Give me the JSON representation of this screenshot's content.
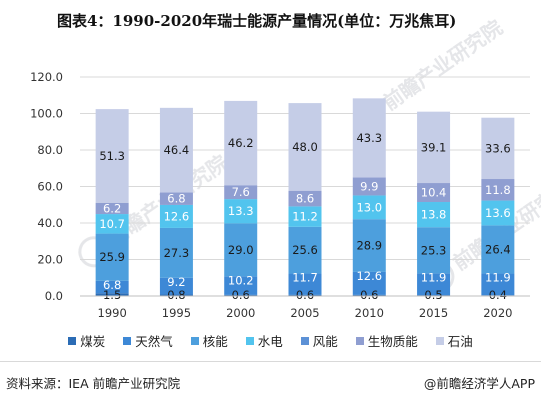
{
  "title": "图表4：1990-2020年瑞士能源产量情况(单位：万兆焦耳)",
  "source": "资料来源：IEA 前瞻产业研究院",
  "brand": "@前瞻经济学人APP",
  "watermarks": [
    "前瞻产业研究院",
    "前瞻产业研究院",
    "前瞻产业研究院"
  ],
  "chart_data": {
    "type": "bar",
    "stacked": true,
    "categories": [
      "1990",
      "1995",
      "2000",
      "2005",
      "2010",
      "2015",
      "2020"
    ],
    "ylim": [
      0,
      120
    ],
    "yticks": [
      "0.0",
      "20.0",
      "40.0",
      "60.0",
      "80.0",
      "100.0",
      "120.0"
    ],
    "series": [
      {
        "name": "煤炭",
        "color": "#2b6cb5",
        "values": [
          1.5,
          0.8,
          0.6,
          0.6,
          0.6,
          0.5,
          0.4
        ],
        "labels": [
          "1.5",
          "0.8",
          "0.6",
          "0.6",
          "0.6",
          "0.5",
          "0.4"
        ]
      },
      {
        "name": "天然气",
        "color": "#3d88d6",
        "values": [
          6.8,
          9.2,
          10.2,
          11.7,
          12.6,
          11.9,
          11.9
        ],
        "labels": [
          "6.8",
          "9.2",
          "10.2",
          "11.7",
          "12.6",
          "11.9",
          "11.9"
        ]
      },
      {
        "name": "核能",
        "color": "#4d9fdd",
        "values": [
          25.9,
          27.3,
          29.0,
          25.6,
          28.9,
          25.3,
          26.4
        ],
        "labels": [
          "25.9",
          "27.3",
          "29.0",
          "25.6",
          "28.9",
          "25.3",
          "26.4"
        ]
      },
      {
        "name": "水电",
        "color": "#52c4ee",
        "values": [
          10.7,
          12.6,
          13.3,
          11.2,
          13.0,
          13.8,
          13.6
        ],
        "labels": [
          "10.7",
          "12.6",
          "13.3",
          "11.2",
          "13.0",
          "13.8",
          "13.6"
        ]
      },
      {
        "name": "风能",
        "color": "#5c91d6",
        "values": [
          0,
          0,
          0,
          0,
          0,
          0,
          0
        ],
        "labels": [
          "",
          "",
          "",
          "",
          "",
          "",
          ""
        ]
      },
      {
        "name": "生物质能",
        "color": "#8f9ed1",
        "values": [
          6.2,
          6.8,
          7.6,
          8.6,
          9.9,
          10.4,
          11.8
        ],
        "labels": [
          "6.2",
          "6.8",
          "7.6",
          "8.6",
          "9.9",
          "10.4",
          "11.8"
        ]
      },
      {
        "name": "石油",
        "color": "#c5cde7",
        "values": [
          51.3,
          46.4,
          46.2,
          48.0,
          43.3,
          39.1,
          33.6
        ],
        "labels": [
          "51.3",
          "46.4",
          "46.2",
          "48.0",
          "43.3",
          "39.1",
          "33.6"
        ]
      }
    ],
    "label_colors": {
      "dark": "#1a1a1a",
      "light": "#ffffff"
    }
  }
}
